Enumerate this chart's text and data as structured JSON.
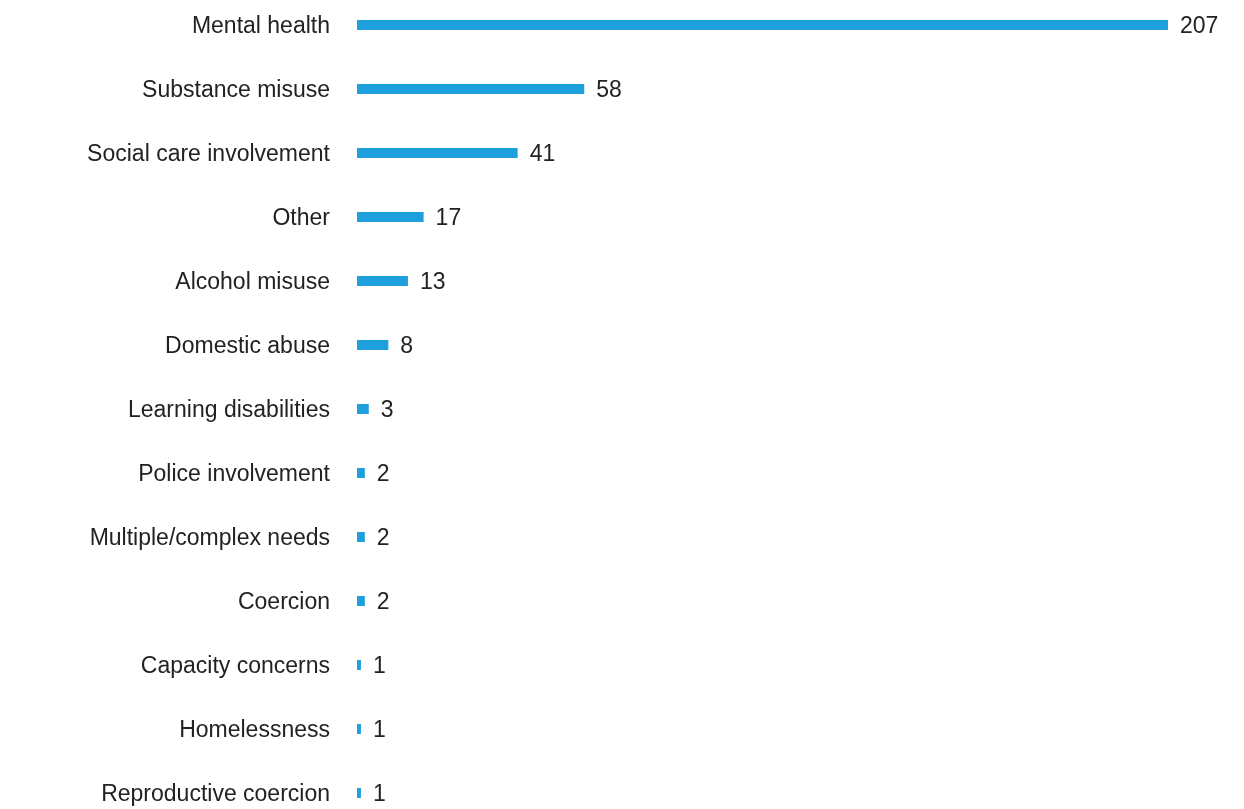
{
  "chart_data": {
    "type": "bar",
    "orientation": "horizontal",
    "categories": [
      "Mental health",
      "Substance misuse",
      "Social care involvement",
      "Other",
      "Alcohol misuse",
      "Domestic abuse",
      "Learning disabilities",
      "Police involvement",
      "Multiple/complex needs",
      "Coercion",
      "Capacity concerns",
      "Homelessness",
      "Reproductive coercion"
    ],
    "values": [
      207,
      58,
      41,
      17,
      13,
      8,
      3,
      2,
      2,
      2,
      1,
      1,
      1
    ],
    "color": "#1d9fdb",
    "data_labels": true
  }
}
